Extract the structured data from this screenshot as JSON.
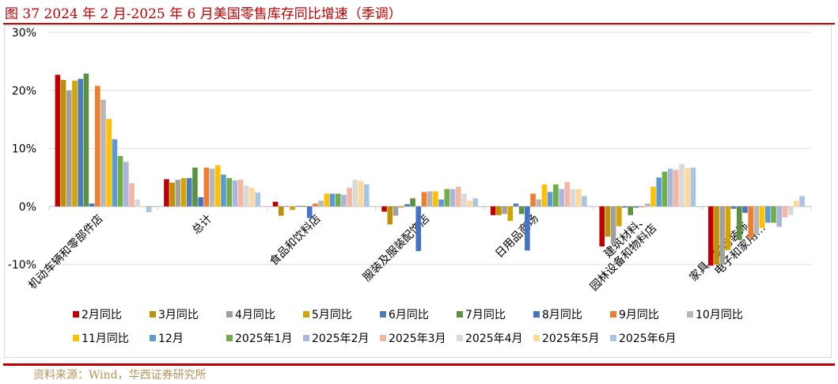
{
  "title": "图 37  2024 年 2 月-2025 年 6 月美国零售库存同比增速（季调）",
  "source": "资料来源：Wind，华西证券研究所",
  "chart_data": {
    "type": "bar",
    "title": "图 37  2024 年 2 月-2025 年 6 月美国零售库存同比增速（季调）",
    "xlabel": "",
    "ylabel": "",
    "ylim": [
      -10,
      30
    ],
    "yticks": [
      -10,
      0,
      10,
      20,
      30
    ],
    "ytick_labels": [
      "-10%",
      "0%",
      "10%",
      "20%",
      "30%"
    ],
    "grid": true,
    "legend_position": "bottom",
    "categories": [
      "机动车辆和零部件店",
      "总计",
      "食品和饮料店",
      "服装及服装配饰店",
      "日用品商场",
      "建筑材料、园林设备和物料店",
      "家具、家用装饰、电子和家用…"
    ],
    "series": [
      {
        "name": "2月同比",
        "color": "#C00000",
        "values": [
          22.7,
          4.7,
          0.8,
          -0.9,
          -1.5,
          -6.9,
          -10.2
        ]
      },
      {
        "name": "3月同比",
        "color": "#BF9000",
        "values": [
          21.8,
          4.1,
          -1.6,
          -3.1,
          -1.5,
          -5.2,
          -10.0
        ]
      },
      {
        "name": "4月同比",
        "color": "#A0A0A0",
        "values": [
          20.0,
          4.6,
          0.1,
          -1.6,
          -1.3,
          -6.4,
          -10.0
        ]
      },
      {
        "name": "5月同比",
        "color": "#D6A400",
        "values": [
          21.7,
          4.9,
          -0.6,
          -0.2,
          -2.5,
          -3.4,
          -7.5
        ]
      },
      {
        "name": "6月同比",
        "color": "#4A7EBB",
        "values": [
          22.0,
          4.9,
          0.1,
          0.4,
          0.5,
          -0.2,
          -0.4
        ]
      },
      {
        "name": "7月同比",
        "color": "#5B9240",
        "values": [
          22.9,
          6.7,
          0.1,
          1.4,
          -1.3,
          -1.5,
          -5.8
        ]
      },
      {
        "name": "8月同比",
        "color": "#4472C4",
        "values": [
          0.5,
          1.6,
          -2.0,
          -7.7,
          -7.6,
          -0.2,
          -1.1
        ]
      },
      {
        "name": "9月同比",
        "color": "#ED7D31",
        "values": [
          20.8,
          6.7,
          0.5,
          2.5,
          2.2,
          -0.1,
          -5.5
        ]
      },
      {
        "name": "10月同比",
        "color": "#B7B7B7",
        "values": [
          18.4,
          6.5,
          1.0,
          2.6,
          1.2,
          0.5,
          -4.9
        ]
      },
      {
        "name": "11月同比",
        "color": "#FFC000",
        "values": [
          15.1,
          7.1,
          2.2,
          2.6,
          3.8,
          3.4,
          -3.7
        ]
      },
      {
        "name": "12月",
        "color": "#5B9BD5",
        "values": [
          11.6,
          5.5,
          2.2,
          1.2,
          2.5,
          5.0,
          -2.8
        ]
      },
      {
        "name": "2025年1月",
        "color": "#70AD47",
        "values": [
          8.7,
          4.9,
          2.2,
          3.0,
          3.8,
          6.0,
          -2.8
        ]
      },
      {
        "name": "2025年2月",
        "color": "#A9B5DC",
        "values": [
          7.7,
          4.5,
          2.0,
          3.0,
          3.0,
          6.5,
          -3.5
        ]
      },
      {
        "name": "2025年3月",
        "color": "#F4B6A0",
        "values": [
          4.0,
          4.6,
          3.2,
          3.4,
          4.2,
          6.3,
          -1.9
        ]
      },
      {
        "name": "2025年4月",
        "color": "#D9D9D9",
        "values": [
          1.2,
          3.6,
          4.6,
          2.2,
          3.0,
          7.3,
          -1.5
        ]
      },
      {
        "name": "2025年5月",
        "color": "#FFD899",
        "values": [
          0.1,
          3.2,
          4.4,
          1.0,
          3.0,
          6.6,
          1.0
        ]
      },
      {
        "name": "2025年6月",
        "color": "#A9C5E6",
        "values": [
          -1.0,
          2.4,
          3.8,
          1.4,
          1.8,
          6.7,
          1.8
        ]
      }
    ]
  }
}
